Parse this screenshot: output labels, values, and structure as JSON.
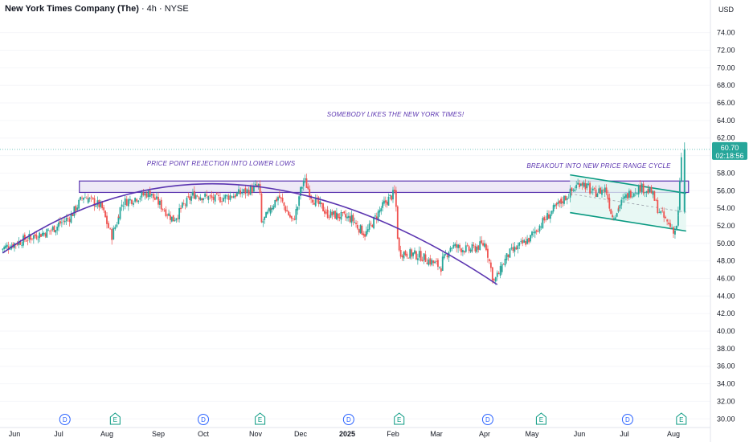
{
  "header": {
    "symbol": "New York Times Company (The)",
    "interval": "4h",
    "exchange": "NYSE",
    "separator": "·"
  },
  "price_axis": {
    "currency": "USD",
    "current_price": "60.70",
    "countdown": "02:18:56"
  },
  "colors": {
    "up": "#26a69a",
    "down": "#ef5350",
    "annotation": "#5b35b0",
    "channel": "#089981",
    "channel_fill": "#e0f5f0",
    "axis_text": "#131722",
    "price_tag": "#26a69a",
    "dividend_badge": "#2962ff",
    "earnings_badge": "#089981"
  },
  "chart_data": {
    "type": "candlestick",
    "title": "",
    "y_axis": {
      "ticks": [
        "74.00",
        "72.00",
        "70.00",
        "68.00",
        "66.00",
        "64.00",
        "62.00",
        "60.00",
        "58.00",
        "56.00",
        "54.00",
        "52.00",
        "50.00",
        "48.00",
        "46.00",
        "44.00",
        "42.00",
        "40.00",
        "38.00",
        "36.00",
        "34.00",
        "32.00",
        "30.00"
      ],
      "ylim": [
        29.2,
        75.8
      ]
    },
    "x_axis": {
      "labels": [
        "Jun",
        "Jul",
        "Aug",
        "Sep",
        "Oct",
        "Nov",
        "Dec",
        "2025",
        "Feb",
        "Mar",
        "Apr",
        "May",
        "Jun",
        "Jul",
        "Aug"
      ],
      "bold_labels": [
        "2025"
      ]
    },
    "price_path": [
      {
        "date": "2024-05-24",
        "close": 49.3
      },
      {
        "date": "2024-06-10",
        "close": 50.5
      },
      {
        "date": "2024-06-26",
        "close": 51.4
      },
      {
        "date": "2024-07-10",
        "close": 53.0
      },
      {
        "date": "2024-07-18",
        "close": 55.4
      },
      {
        "date": "2024-07-30",
        "close": 54.2
      },
      {
        "date": "2024-08-05",
        "close": 50.8
      },
      {
        "date": "2024-08-12",
        "close": 54.6
      },
      {
        "date": "2024-08-28",
        "close": 55.8
      },
      {
        "date": "2024-09-12",
        "close": 52.7
      },
      {
        "date": "2024-09-26",
        "close": 55.6
      },
      {
        "date": "2024-10-10",
        "close": 55.0
      },
      {
        "date": "2024-10-28",
        "close": 55.9
      },
      {
        "date": "2024-11-05",
        "close": 56.6
      },
      {
        "date": "2024-11-06",
        "close": 52.2
      },
      {
        "date": "2024-11-18",
        "close": 55.4
      },
      {
        "date": "2024-11-27",
        "close": 52.4
      },
      {
        "date": "2024-12-05",
        "close": 57.3
      },
      {
        "date": "2024-12-10",
        "close": 55.2
      },
      {
        "date": "2024-12-20",
        "close": 53.4
      },
      {
        "date": "2025-01-05",
        "close": 52.8
      },
      {
        "date": "2025-01-15",
        "close": 51.0
      },
      {
        "date": "2025-01-25",
        "close": 54.0
      },
      {
        "date": "2025-02-04",
        "close": 55.8
      },
      {
        "date": "2025-02-06",
        "close": 49.0
      },
      {
        "date": "2025-02-20",
        "close": 48.6
      },
      {
        "date": "2025-03-05",
        "close": 47.3
      },
      {
        "date": "2025-03-12",
        "close": 49.7
      },
      {
        "date": "2025-03-24",
        "close": 49.2
      },
      {
        "date": "2025-04-03",
        "close": 50.0
      },
      {
        "date": "2025-04-08",
        "close": 45.6
      },
      {
        "date": "2025-04-18",
        "close": 48.8
      },
      {
        "date": "2025-05-01",
        "close": 50.6
      },
      {
        "date": "2025-05-15",
        "close": 53.6
      },
      {
        "date": "2025-05-29",
        "close": 56.0
      },
      {
        "date": "2025-06-03",
        "close": 57.1
      },
      {
        "date": "2025-06-12",
        "close": 55.7
      },
      {
        "date": "2025-06-20",
        "close": 56.2
      },
      {
        "date": "2025-06-24",
        "close": 53.0
      },
      {
        "date": "2025-07-05",
        "close": 55.6
      },
      {
        "date": "2025-07-12",
        "close": 56.4
      },
      {
        "date": "2025-07-20",
        "close": 55.8
      },
      {
        "date": "2025-07-24",
        "close": 53.8
      },
      {
        "date": "2025-07-30",
        "close": 52.2
      },
      {
        "date": "2025-08-03",
        "close": 51.4
      },
      {
        "date": "2025-08-06",
        "close": 53.6
      },
      {
        "date": "2025-08-08",
        "close": 60.7
      }
    ],
    "events": [
      {
        "type": "dividend",
        "label": "D",
        "date": "2024-07-05"
      },
      {
        "type": "earnings",
        "label": "E",
        "date": "2024-08-06"
      },
      {
        "type": "dividend",
        "label": "D",
        "date": "2024-10-01"
      },
      {
        "type": "earnings",
        "label": "E",
        "date": "2024-11-04"
      },
      {
        "type": "dividend",
        "label": "D",
        "date": "2025-01-02"
      },
      {
        "type": "earnings",
        "label": "E",
        "date": "2025-02-05"
      },
      {
        "type": "dividend",
        "label": "D",
        "date": "2025-04-03"
      },
      {
        "type": "earnings",
        "label": "E",
        "date": "2025-05-07"
      },
      {
        "type": "dividend",
        "label": "D",
        "date": "2025-07-03"
      },
      {
        "type": "earnings",
        "label": "E",
        "date": "2025-08-06"
      }
    ],
    "annotations": {
      "texts": [
        "SOMEBODY LIKES THE NEW YORK TIMES!",
        "PRICE POINT REJECTION INTO LOWER LOWS",
        "BREAKOUT INTO NEW PRICE RANGE CYCLE"
      ],
      "resistance_zone": {
        "from_date": "2024-07-05",
        "to_date": "2025-08-08",
        "low": 55.8,
        "high": 57.1
      },
      "arc": {
        "start_date": "2024-05-24",
        "start_price": 48.9,
        "peak_date": "2024-10-20",
        "peak_price": 56.7,
        "end_date": "2025-04-09",
        "end_price": 45.3
      },
      "channel": {
        "upper": [
          {
            "date": "2025-05-29",
            "price": 57.8
          },
          {
            "date": "2025-08-08",
            "price": 55.7
          }
        ],
        "lower": [
          {
            "date": "2025-05-29",
            "price": 53.5
          },
          {
            "date": "2025-08-08",
            "price": 51.4
          }
        ]
      }
    }
  }
}
